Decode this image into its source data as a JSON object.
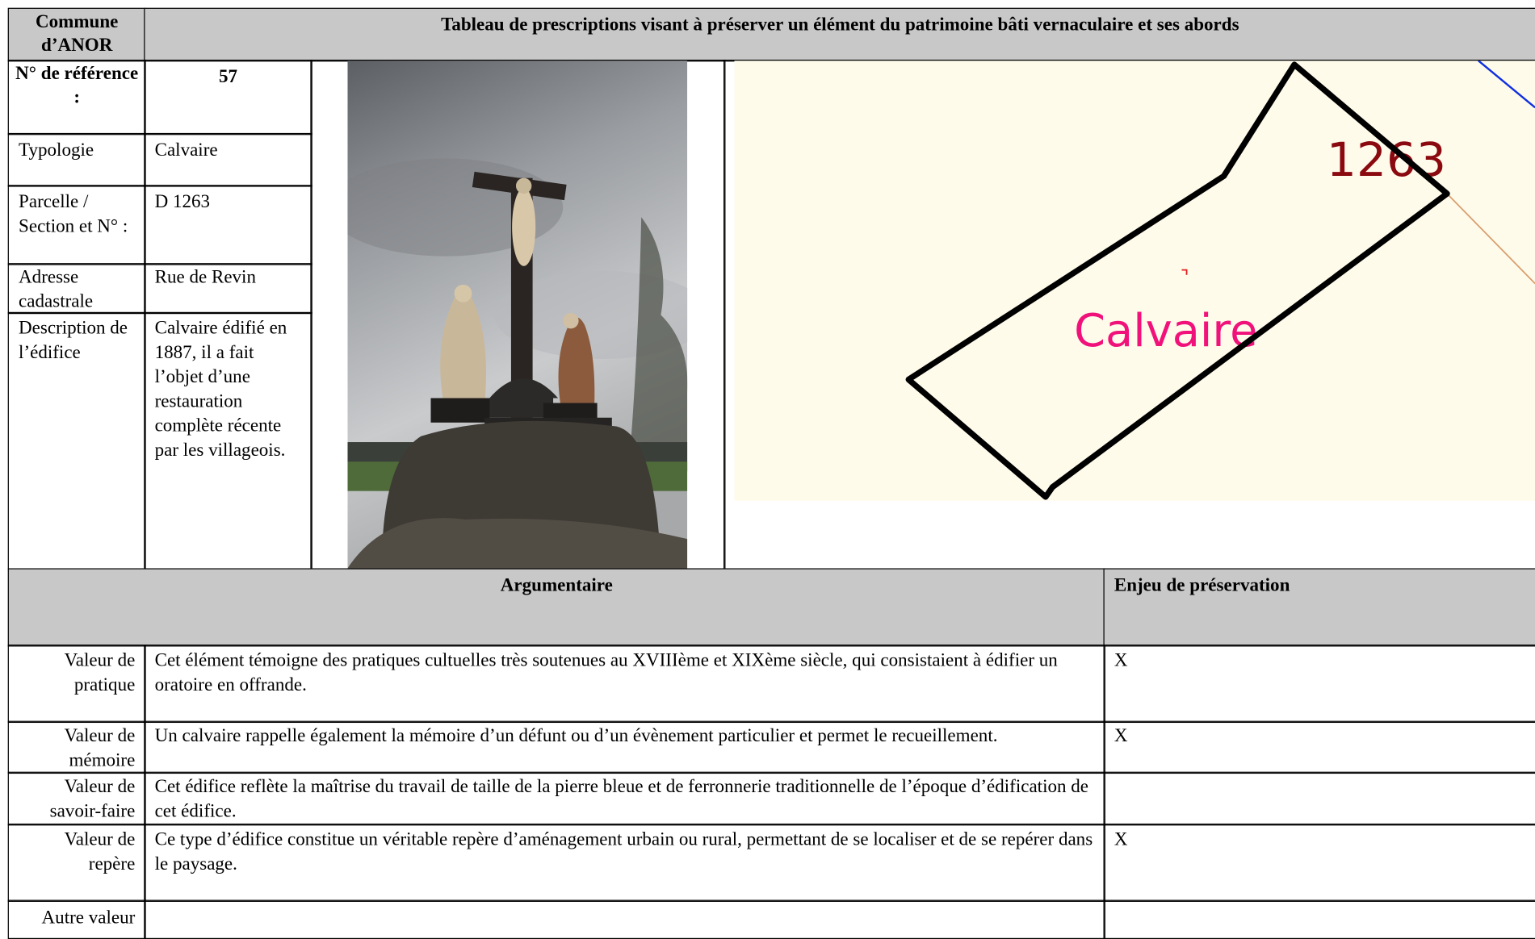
{
  "header": {
    "commune": "Commune d’ANOR",
    "title": "Tableau de prescriptions visant à préserver un élément du patrimoine bâti vernaculaire et ses abords"
  },
  "fiche": {
    "reference_label": "N° de référence :",
    "reference": "57",
    "rows": [
      [
        "Typologie",
        "Calvaire"
      ],
      [
        "Parcelle / Section et N° :",
        "D 1263"
      ],
      [
        "Adresse cadastrale",
        "Rue de Revin"
      ],
      [
        "Description de l’édifice",
        "Calvaire édifié en 1887, il a fait l’objet d’une restauration complète récente par les villageois."
      ]
    ]
  },
  "map": {
    "parcel": "1263",
    "label": "Calvaire"
  },
  "argumentaire": {
    "header": "Argumentaire",
    "enjeu_header": "Enjeu de préservation",
    "rows": [
      {
        "label": "Valeur de pratique",
        "text": "Cet élément témoigne des pratiques cultuelles très soutenues au XVIIIème et XIXème siècle, qui consistaient à édifier un oratoire en offrande.",
        "enjeu": "X"
      },
      {
        "label": "Valeur de mémoire",
        "text": "Un calvaire rappelle également la mémoire d’un défunt ou d’un évènement particulier et permet le recueillement.",
        "enjeu": "X"
      },
      {
        "label": "Valeur de savoir-faire",
        "text": "Cet édifice reflète la maîtrise du travail de taille de la pierre bleue et de ferronnerie traditionnelle de l’époque d’édification de cet édifice."
      },
      {
        "label": "Valeur de repère",
        "text": "Ce type d’édifice constitue un véritable repère d’aménagement urbain ou rural, permettant de se localiser et de se repérer dans le paysage.",
        "enjeu": "X"
      },
      {
        "label": "Autre valeur"
      }
    ]
  }
}
